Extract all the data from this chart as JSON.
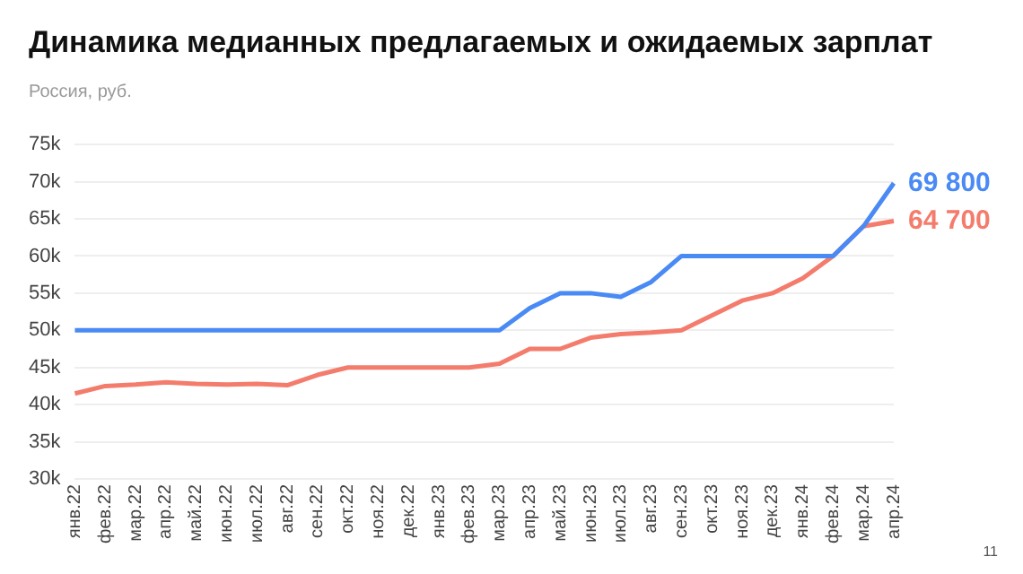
{
  "chart_data": {
    "type": "line",
    "title": "Динамика медианных предлагаемых и ожидаемых зарплат",
    "subtitle": "Россия, руб.",
    "categories": [
      "янв.22",
      "фев.22",
      "мар.22",
      "апр.22",
      "май.22",
      "июн.22",
      "июл.22",
      "авг.22",
      "сен.22",
      "окт.22",
      "ноя.22",
      "дек.22",
      "янв.23",
      "фев.23",
      "мар.23",
      "апр.23",
      "май.23",
      "июн.23",
      "июл.23",
      "авг.23",
      "сен.23",
      "окт.23",
      "ноя.23",
      "дек.23",
      "янв.24",
      "фев.24",
      "мар.24",
      "апр.24"
    ],
    "series": [
      {
        "color": "#4a8af4",
        "values": [
          50000,
          50000,
          50000,
          50000,
          50000,
          50000,
          50000,
          50000,
          50000,
          50000,
          50000,
          50000,
          50000,
          50000,
          50000,
          53000,
          55000,
          55000,
          54500,
          56500,
          60000,
          60000,
          60000,
          60000,
          60000,
          60000,
          64000,
          69800
        ],
        "value_labels": [
          null,
          null,
          null,
          null,
          null,
          null,
          null,
          null,
          null,
          null,
          null,
          null,
          null,
          null,
          null,
          null,
          null,
          null,
          null,
          null,
          null,
          null,
          null,
          null,
          null,
          null,
          null,
          "69 800"
        ]
      },
      {
        "color": "#f47c6c",
        "values": [
          41500,
          42500,
          42700,
          43000,
          42800,
          42700,
          42800,
          42600,
          44000,
          45000,
          45000,
          45000,
          45000,
          45000,
          45500,
          47500,
          47500,
          49000,
          49500,
          49700,
          50000,
          52000,
          54000,
          55000,
          57000,
          60000,
          64000,
          64700
        ],
        "value_labels": [
          null,
          null,
          null,
          null,
          null,
          null,
          null,
          null,
          null,
          null,
          null,
          null,
          null,
          null,
          null,
          null,
          null,
          null,
          null,
          null,
          null,
          null,
          null,
          null,
          null,
          null,
          null,
          "64 700"
        ]
      }
    ],
    "ylim": [
      30000,
      75000
    ],
    "yticks": [
      {
        "value": 30000,
        "label": "30k"
      },
      {
        "value": 35000,
        "label": "35k"
      },
      {
        "value": 40000,
        "label": "40k"
      },
      {
        "value": 45000,
        "label": "45k"
      },
      {
        "value": 50000,
        "label": "50k"
      },
      {
        "value": 55000,
        "label": "55k"
      },
      {
        "value": 60000,
        "label": "60k"
      },
      {
        "value": 65000,
        "label": "65k"
      },
      {
        "value": 70000,
        "label": "70k"
      },
      {
        "value": 75000,
        "label": "75k"
      }
    ],
    "grid": "y",
    "marker": "none",
    "line_style": "solid",
    "legend": false,
    "annotations": [
      "11"
    ]
  }
}
